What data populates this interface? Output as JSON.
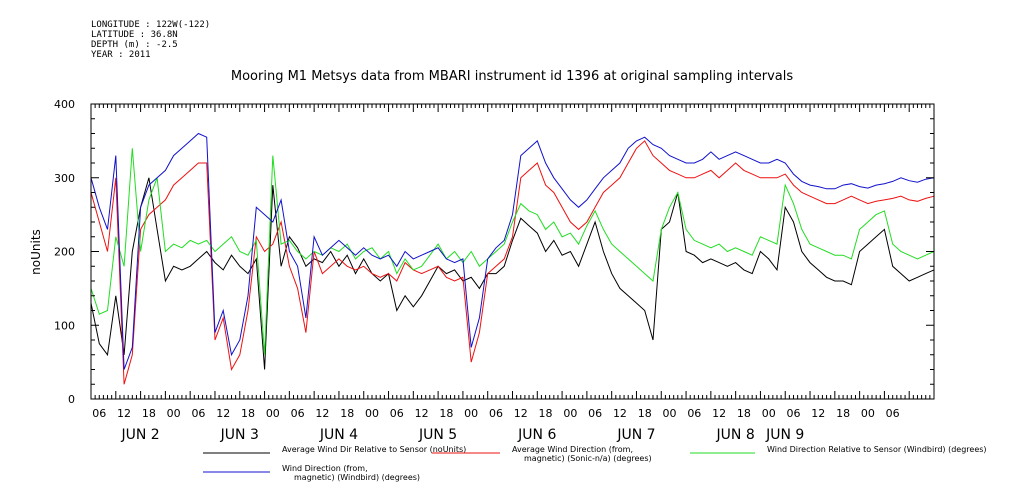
{
  "meta": {
    "longitude": "LONGITUDE : 122W(-122)",
    "latitude": "LATITUDE : 36.8N",
    "depth": "DEPTH (m) : -2.5",
    "year": "YEAR : 2011"
  },
  "chart_data": {
    "type": "line",
    "title": "Mooring M1 Metsys data from MBARI instrument id 1396 at original sampling intervals",
    "ylabel": "noUnits",
    "xlabel": "",
    "ylim": [
      0,
      400
    ],
    "y_ticks": [
      "0",
      "100",
      "200",
      "300",
      "400"
    ],
    "x_range_hours": [
      0,
      204
    ],
    "x_hour_ticks": [
      "06",
      "12",
      "18",
      "00",
      "06",
      "12",
      "18",
      "00",
      "06",
      "12",
      "18",
      "00",
      "06",
      "12",
      "18",
      "00",
      "06",
      "12",
      "18",
      "00",
      "06",
      "12",
      "18",
      "00",
      "06",
      "12",
      "18",
      "00",
      "06",
      "12",
      "18",
      "00",
      "06"
    ],
    "day_labels": [
      {
        "label": "JUN  2",
        "hour": 12
      },
      {
        "label": "JUN  3",
        "hour": 36
      },
      {
        "label": "JUN  4",
        "hour": 60
      },
      {
        "label": "JUN  5",
        "hour": 84
      },
      {
        "label": "JUN  6",
        "hour": 108
      },
      {
        "label": "JUN  7",
        "hour": 132
      },
      {
        "label": "JUN  8",
        "hour": 156
      },
      {
        "label": "JUN  9",
        "hour": 168
      }
    ],
    "series": [
      {
        "name": "Average Wind Dir Relative to Sensor (noUnits)",
        "color": "#000000",
        "x": [
          0,
          2,
          4,
          6,
          8,
          10,
          12,
          14,
          16,
          18,
          20,
          22,
          24,
          26,
          28,
          30,
          32,
          34,
          36,
          38,
          40,
          42,
          44,
          46,
          48,
          50,
          52,
          54,
          56,
          58,
          60,
          62,
          64,
          66,
          68,
          70,
          72,
          74,
          76,
          78,
          80,
          82,
          84,
          86,
          88,
          90,
          92,
          94,
          96,
          98,
          100,
          102,
          104,
          106,
          108,
          110,
          112,
          114,
          116,
          118,
          120,
          122,
          124,
          126,
          128,
          130,
          132,
          134,
          136,
          138,
          140,
          142,
          144,
          146,
          148,
          150,
          152,
          154,
          156,
          158,
          160,
          162,
          164,
          166,
          168,
          170,
          172,
          174,
          176,
          178,
          180,
          182,
          184,
          186,
          188,
          190,
          192,
          194,
          196,
          198,
          200,
          202,
          204
        ],
        "values": [
          130,
          75,
          60,
          140,
          60,
          200,
          260,
          300,
          230,
          160,
          180,
          175,
          180,
          190,
          200,
          185,
          175,
          195,
          180,
          170,
          190,
          40,
          290,
          180,
          220,
          205,
          180,
          190,
          185,
          200,
          180,
          195,
          170,
          190,
          170,
          160,
          170,
          120,
          140,
          125,
          140,
          160,
          180,
          170,
          175,
          160,
          165,
          150,
          170,
          170,
          180,
          215,
          245,
          235,
          225,
          200,
          215,
          195,
          200,
          180,
          210,
          240,
          200,
          170,
          150,
          140,
          130,
          120,
          80,
          230,
          240,
          280,
          200,
          195,
          185,
          190,
          185,
          180,
          185,
          175,
          170,
          200,
          190,
          175,
          260,
          240,
          200,
          185,
          175,
          165,
          160,
          160,
          155,
          200,
          210,
          220,
          230,
          180,
          170,
          160,
          165,
          170,
          175
        ]
      },
      {
        "name": "Average Wind Direction (from, magnetic) (Sonic-n/a) (degrees)",
        "color": "#ee1111",
        "x": [
          0,
          2,
          4,
          6,
          8,
          10,
          12,
          14,
          16,
          18,
          20,
          22,
          24,
          26,
          28,
          30,
          32,
          34,
          36,
          38,
          40,
          42,
          44,
          46,
          48,
          50,
          52,
          54,
          56,
          58,
          60,
          62,
          64,
          66,
          68,
          70,
          72,
          74,
          76,
          78,
          80,
          82,
          84,
          86,
          88,
          90,
          92,
          94,
          96,
          98,
          100,
          102,
          104,
          106,
          108,
          110,
          112,
          114,
          116,
          118,
          120,
          122,
          124,
          126,
          128,
          130,
          132,
          134,
          136,
          138,
          140,
          142,
          144,
          146,
          148,
          150,
          152,
          154,
          156,
          158,
          160,
          162,
          164,
          166,
          168,
          170,
          172,
          174,
          176,
          178,
          180,
          182,
          184,
          186,
          188,
          190,
          192,
          194,
          196,
          198,
          200,
          202,
          204
        ],
        "values": [
          280,
          240,
          200,
          300,
          20,
          60,
          230,
          250,
          260,
          270,
          290,
          300,
          310,
          320,
          320,
          80,
          110,
          40,
          60,
          120,
          220,
          200,
          210,
          240,
          180,
          150,
          90,
          200,
          170,
          180,
          190,
          180,
          175,
          180,
          170,
          165,
          170,
          160,
          185,
          175,
          170,
          175,
          180,
          165,
          160,
          165,
          50,
          90,
          170,
          180,
          190,
          220,
          300,
          310,
          320,
          290,
          280,
          260,
          240,
          230,
          240,
          260,
          280,
          290,
          300,
          320,
          340,
          350,
          330,
          320,
          310,
          305,
          300,
          300,
          305,
          310,
          300,
          310,
          320,
          310,
          305,
          300,
          300,
          300,
          305,
          290,
          280,
          275,
          270,
          265,
          265,
          270,
          275,
          270,
          265,
          268,
          270,
          272,
          275,
          270,
          268,
          272,
          275
        ]
      },
      {
        "name": "Wind Direction Relative to Sensor (Windbird) (degrees)",
        "color": "#22dd22",
        "x": [
          0,
          2,
          4,
          6,
          8,
          10,
          12,
          14,
          16,
          18,
          20,
          22,
          24,
          26,
          28,
          30,
          32,
          34,
          36,
          38,
          40,
          42,
          44,
          46,
          48,
          50,
          52,
          54,
          56,
          58,
          60,
          62,
          64,
          66,
          68,
          70,
          72,
          74,
          76,
          78,
          80,
          82,
          84,
          86,
          88,
          90,
          92,
          94,
          96,
          98,
          100,
          102,
          104,
          106,
          108,
          110,
          112,
          114,
          116,
          118,
          120,
          122,
          124,
          126,
          128,
          130,
          132,
          134,
          136,
          138,
          140,
          142,
          144,
          146,
          148,
          150,
          152,
          154,
          156,
          158,
          160,
          162,
          164,
          166,
          168,
          170,
          172,
          174,
          176,
          178,
          180,
          182,
          184,
          186,
          188,
          190,
          192,
          194,
          196,
          198,
          200,
          202,
          204
        ],
        "values": [
          150,
          115,
          120,
          220,
          180,
          340,
          200,
          270,
          300,
          200,
          210,
          205,
          215,
          210,
          215,
          200,
          210,
          220,
          200,
          195,
          215,
          60,
          330,
          210,
          215,
          200,
          190,
          200,
          195,
          205,
          200,
          210,
          190,
          200,
          205,
          190,
          200,
          170,
          190,
          175,
          180,
          195,
          210,
          190,
          200,
          185,
          200,
          180,
          190,
          200,
          210,
          240,
          265,
          255,
          250,
          230,
          240,
          220,
          225,
          210,
          235,
          255,
          230,
          210,
          200,
          190,
          180,
          170,
          160,
          230,
          260,
          280,
          230,
          215,
          210,
          205,
          210,
          200,
          205,
          200,
          195,
          220,
          215,
          210,
          290,
          265,
          230,
          210,
          205,
          200,
          195,
          195,
          190,
          230,
          240,
          250,
          255,
          210,
          200,
          195,
          190,
          195,
          200
        ]
      },
      {
        "name": "Wind Direction (from, magnetic) (Windbird) (degrees)",
        "color": "#1111cc",
        "x": [
          0,
          2,
          4,
          6,
          8,
          10,
          12,
          14,
          16,
          18,
          20,
          22,
          24,
          26,
          28,
          30,
          32,
          34,
          36,
          38,
          40,
          42,
          44,
          46,
          48,
          50,
          52,
          54,
          56,
          58,
          60,
          62,
          64,
          66,
          68,
          70,
          72,
          74,
          76,
          78,
          80,
          82,
          84,
          86,
          88,
          90,
          92,
          94,
          96,
          98,
          100,
          102,
          104,
          106,
          108,
          110,
          112,
          114,
          116,
          118,
          120,
          122,
          124,
          126,
          128,
          130,
          132,
          134,
          136,
          138,
          140,
          142,
          144,
          146,
          148,
          150,
          152,
          154,
          156,
          158,
          160,
          162,
          164,
          166,
          168,
          170,
          172,
          174,
          176,
          178,
          180,
          182,
          184,
          186,
          188,
          190,
          192,
          194,
          196,
          198,
          200,
          202,
          204
        ],
        "values": [
          300,
          260,
          230,
          330,
          40,
          70,
          260,
          290,
          300,
          310,
          330,
          340,
          350,
          360,
          355,
          90,
          120,
          60,
          80,
          140,
          260,
          250,
          240,
          270,
          200,
          180,
          110,
          220,
          195,
          205,
          215,
          205,
          195,
          205,
          195,
          190,
          195,
          180,
          200,
          190,
          195,
          200,
          205,
          190,
          185,
          190,
          70,
          110,
          190,
          205,
          215,
          250,
          330,
          340,
          350,
          320,
          300,
          285,
          270,
          260,
          270,
          285,
          300,
          310,
          320,
          340,
          350,
          355,
          345,
          340,
          330,
          325,
          320,
          320,
          325,
          335,
          325,
          330,
          335,
          330,
          325,
          320,
          320,
          325,
          320,
          305,
          295,
          290,
          288,
          285,
          285,
          290,
          292,
          288,
          286,
          290,
          292,
          295,
          300,
          296,
          294,
          298,
          300
        ]
      }
    ]
  },
  "legend": [
    {
      "line1": "Average Wind Dir Relative to Sensor (noUnits)",
      "line2": "",
      "color": "#000000"
    },
    {
      "line1": "Average Wind Direction (from,",
      "line2": "magnetic) (Sonic-n/a) (degrees)",
      "color": "#ee1111"
    },
    {
      "line1": "Wind Direction Relative to Sensor (Windbird) (degrees)",
      "line2": "",
      "color": "#22dd22"
    },
    {
      "line1": "Wind Direction (from,",
      "line2": "magnetic) (Windbird) (degrees)",
      "color": "#1111cc"
    }
  ]
}
